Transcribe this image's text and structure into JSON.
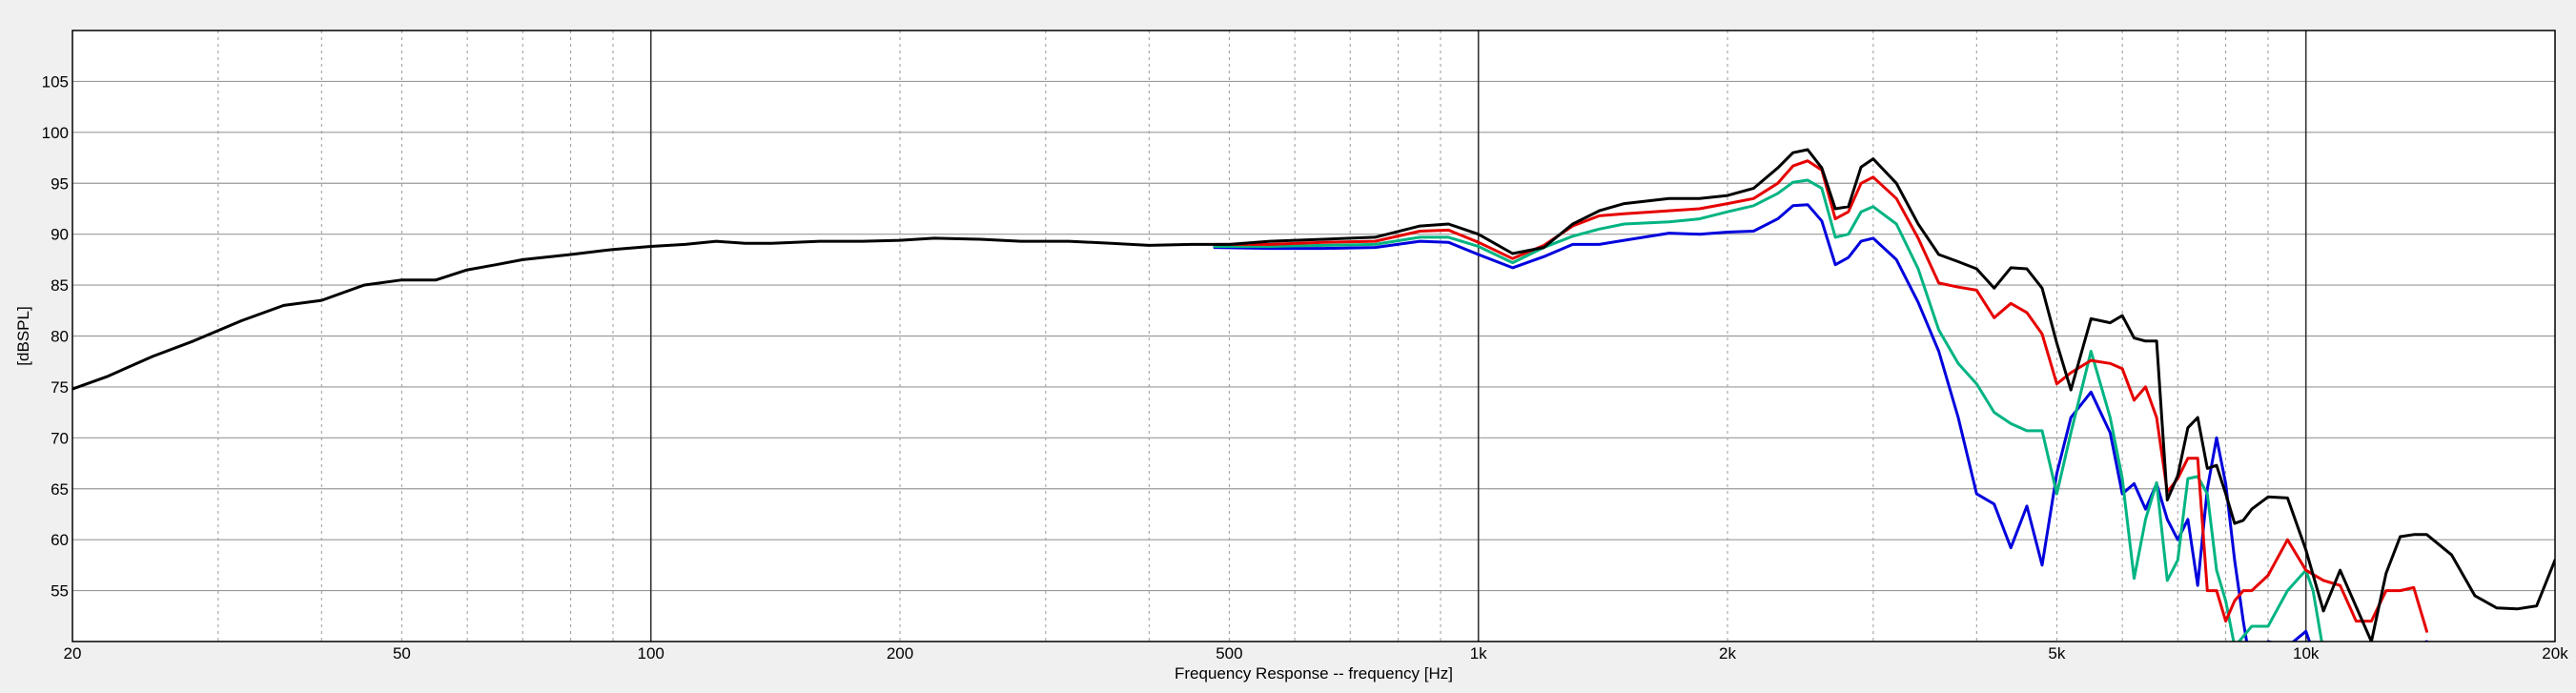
{
  "chart_data": {
    "type": "line",
    "xlabel": "Frequency Response -- frequency [Hz]",
    "ylabel": "[dBSPL]",
    "x_scale": "log",
    "xlim": [
      20,
      20000
    ],
    "ylim": [
      50,
      110
    ],
    "grid": true,
    "legend": "none",
    "x_ticks": [
      {
        "value": 20,
        "label": "20"
      },
      {
        "value": 50,
        "label": "50"
      },
      {
        "value": 100,
        "label": "100"
      },
      {
        "value": 200,
        "label": "200"
      },
      {
        "value": 500,
        "label": "500"
      },
      {
        "value": 1000,
        "label": "1k"
      },
      {
        "value": 2000,
        "label": "2k"
      },
      {
        "value": 5000,
        "label": "5k"
      },
      {
        "value": 10000,
        "label": "10k"
      },
      {
        "value": 20000,
        "label": "20k"
      }
    ],
    "y_ticks": [
      {
        "value": 55,
        "label": "55"
      },
      {
        "value": 60,
        "label": "60"
      },
      {
        "value": 65,
        "label": "65"
      },
      {
        "value": 70,
        "label": "70"
      },
      {
        "value": 75,
        "label": "75"
      },
      {
        "value": 80,
        "label": "80"
      },
      {
        "value": 85,
        "label": "85"
      },
      {
        "value": 90,
        "label": "90"
      },
      {
        "value": 95,
        "label": "95"
      },
      {
        "value": 100,
        "label": "100"
      },
      {
        "value": 105,
        "label": "105"
      }
    ],
    "series": [
      {
        "color": "#0000dd",
        "x": [
          480,
          560,
          650,
          750,
          850,
          920,
          1000,
          1100,
          1200,
          1300,
          1400,
          1500,
          1700,
          1850,
          2000,
          2150,
          2300,
          2400,
          2500,
          2600,
          2700,
          2800,
          2900,
          3000,
          3200,
          3400,
          3600,
          3800,
          4000,
          4200,
          4400,
          4600,
          4800,
          5000,
          5200,
          5500,
          5800,
          6000,
          6200,
          6400,
          6600,
          6800,
          7000,
          7200,
          7400,
          7600,
          7800,
          8000,
          8200,
          8400,
          8600,
          9000,
          9500,
          10000,
          10200,
          10500,
          14000,
          14200
        ],
        "y": [
          88.7,
          88.6,
          88.6,
          88.7,
          89.3,
          89.2,
          88,
          86.7,
          87.8,
          89,
          89,
          89.4,
          90.1,
          90,
          90.2,
          90.3,
          91.5,
          92.8,
          92.9,
          91.3,
          87,
          87.7,
          89.3,
          89.6,
          87.5,
          83.3,
          78.5,
          72,
          64.5,
          63.5,
          59.2,
          63.3,
          57.5,
          66.5,
          72,
          74.5,
          70.5,
          64.5,
          65.5,
          63,
          65.5,
          62,
          60,
          62,
          55.5,
          65,
          70,
          65.5,
          58,
          52,
          47,
          50,
          49.5,
          51,
          49,
          46,
          50,
          49
        ]
      },
      {
        "color": "#00b482",
        "x": [
          480,
          560,
          650,
          750,
          850,
          920,
          1000,
          1100,
          1200,
          1300,
          1400,
          1500,
          1700,
          1850,
          2000,
          2150,
          2300,
          2400,
          2500,
          2600,
          2700,
          2800,
          2900,
          3000,
          3200,
          3400,
          3600,
          3800,
          4000,
          4200,
          4400,
          4600,
          4800,
          5000,
          5200,
          5500,
          5800,
          6000,
          6200,
          6400,
          6600,
          6800,
          7000,
          7200,
          7400,
          7600,
          7800,
          8000,
          8200,
          8400,
          8600,
          9000,
          9500,
          10000,
          10200,
          10500
        ],
        "y": [
          88.8,
          88.8,
          88.9,
          89,
          89.7,
          89.7,
          88.8,
          87.2,
          88.7,
          89.8,
          90.5,
          91,
          91.2,
          91.5,
          92.2,
          92.8,
          94,
          95.1,
          95.3,
          94.5,
          89.7,
          90,
          92.2,
          92.7,
          91,
          86.6,
          80.6,
          77.3,
          75.3,
          72.5,
          71.4,
          70.7,
          70.7,
          64.5,
          70.5,
          78.5,
          72,
          66,
          56.2,
          62,
          65.6,
          56,
          58,
          66,
          66.2,
          64.5,
          57,
          54,
          49.5,
          50.5,
          51.5,
          51.5,
          55,
          57,
          55,
          49
        ]
      },
      {
        "color": "#e60000",
        "x": [
          480,
          560,
          650,
          750,
          850,
          920,
          1000,
          1100,
          1200,
          1300,
          1400,
          1500,
          1700,
          1850,
          2000,
          2150,
          2300,
          2400,
          2500,
          2600,
          2700,
          2800,
          2900,
          3000,
          3200,
          3400,
          3600,
          3800,
          4000,
          4200,
          4400,
          4600,
          4800,
          5000,
          5200,
          5500,
          5800,
          6000,
          6200,
          6400,
          6600,
          6800,
          7000,
          7200,
          7400,
          7600,
          7800,
          8000,
          8200,
          8400,
          8600,
          9000,
          9500,
          10000,
          10500,
          11000,
          11500,
          12000,
          12500,
          13000,
          13500,
          14000
        ],
        "y": [
          89,
          89,
          89.2,
          89.3,
          90.3,
          90.4,
          89.2,
          87.6,
          88.9,
          90.8,
          91.8,
          92,
          92.3,
          92.5,
          93,
          93.5,
          95,
          96.7,
          97.2,
          96.3,
          91.5,
          92.2,
          95,
          95.6,
          93.5,
          89.6,
          85.2,
          84.8,
          84.5,
          81.8,
          83.2,
          82.3,
          80.2,
          75.3,
          76.4,
          77.6,
          77.3,
          76.8,
          73.7,
          75,
          72,
          64.7,
          66,
          68,
          68,
          55,
          55,
          52,
          54,
          55,
          55,
          56.5,
          60,
          57,
          56,
          55.5,
          52,
          52,
          55,
          55,
          55.3,
          51
        ]
      },
      {
        "color": "#000000",
        "x": [
          20,
          22,
          25,
          28,
          32,
          36,
          40,
          45,
          50,
          55,
          60,
          65,
          70,
          80,
          90,
          100,
          110,
          120,
          130,
          140,
          160,
          180,
          200,
          220,
          250,
          280,
          320,
          360,
          400,
          450,
          500,
          560,
          650,
          750,
          850,
          920,
          1000,
          1100,
          1200,
          1300,
          1400,
          1500,
          1700,
          1850,
          2000,
          2150,
          2300,
          2400,
          2500,
          2600,
          2700,
          2800,
          2900,
          3000,
          3200,
          3400,
          3600,
          3800,
          4000,
          4200,
          4400,
          4600,
          4800,
          5000,
          5200,
          5500,
          5800,
          6000,
          6200,
          6400,
          6600,
          6800,
          7000,
          7200,
          7400,
          7600,
          7800,
          8000,
          8200,
          8400,
          8600,
          9000,
          9500,
          10000,
          10500,
          11000,
          12000,
          12500,
          13000,
          13500,
          14000,
          15000,
          16000,
          17000,
          18000,
          19000,
          20000
        ],
        "y": [
          74.8,
          76,
          78,
          79.5,
          81.5,
          83,
          83.5,
          85,
          85.5,
          85.5,
          86.5,
          87,
          87.5,
          88,
          88.5,
          88.8,
          89,
          89.3,
          89.1,
          89.1,
          89.3,
          89.3,
          89.4,
          89.6,
          89.5,
          89.3,
          89.3,
          89.1,
          88.9,
          89,
          89,
          89.3,
          89.5,
          89.7,
          90.8,
          91,
          90,
          88.1,
          88.7,
          91,
          92.3,
          93,
          93.5,
          93.5,
          93.8,
          94.5,
          96.5,
          98,
          98.3,
          96.5,
          92.5,
          92.7,
          96.6,
          97.4,
          95,
          91,
          88,
          87.3,
          86.6,
          84.7,
          86.7,
          86.6,
          84.7,
          79.3,
          74.7,
          81.7,
          81.3,
          82,
          79.8,
          79.5,
          79.5,
          63.9,
          66.3,
          71,
          72,
          67,
          67.3,
          64.5,
          61.6,
          61.9,
          63,
          64.2,
          64.1,
          59,
          53,
          57,
          50,
          56.7,
          60.3,
          60.5,
          60.5,
          58.5,
          54.5,
          53.3,
          53.2,
          53.5,
          58
        ]
      }
    ]
  }
}
